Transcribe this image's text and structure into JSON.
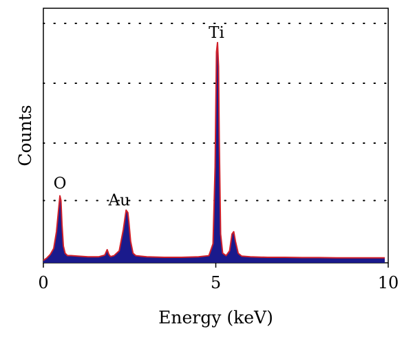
{
  "chart_data": {
    "type": "area",
    "title": "",
    "xlabel": "Energy (keV)",
    "ylabel": "Counts",
    "xlim": [
      0,
      10
    ],
    "ylim": [
      0,
      100
    ],
    "x_ticks": [
      0,
      5,
      10
    ],
    "y_ticks_shown": false,
    "grid": {
      "horizontal": true,
      "style": "dotted",
      "levels": [
        26,
        50,
        75,
        100
      ]
    },
    "series": [
      {
        "fill_color": "#1a1a8c",
        "outline_color": "#d0202a",
        "x": [
          0.0,
          0.1,
          0.2,
          0.3,
          0.38,
          0.44,
          0.48,
          0.51,
          0.54,
          0.58,
          0.63,
          0.7,
          0.8,
          1.0,
          1.3,
          1.6,
          1.78,
          1.85,
          1.9,
          1.95,
          2.05,
          2.2,
          2.32,
          2.4,
          2.45,
          2.48,
          2.53,
          2.6,
          2.68,
          2.8,
          3.0,
          3.5,
          4.0,
          4.5,
          4.8,
          4.92,
          4.98,
          5.02,
          5.05,
          5.08,
          5.1,
          5.14,
          5.2,
          5.3,
          5.4,
          5.47,
          5.52,
          5.57,
          5.65,
          5.75,
          6.0,
          6.5,
          7.0,
          7.5,
          8.0,
          8.5,
          9.0,
          9.5,
          9.9
        ],
        "values": [
          1.0,
          2.0,
          3.5,
          6.0,
          13.0,
          22.0,
          28.0,
          26.0,
          16.0,
          7.0,
          4.0,
          3.0,
          3.0,
          2.8,
          2.5,
          2.5,
          3.2,
          5.5,
          3.5,
          2.6,
          3.0,
          5.0,
          14.0,
          22.0,
          21.0,
          17.0,
          9.0,
          4.0,
          3.0,
          2.8,
          2.5,
          2.3,
          2.3,
          2.5,
          3.0,
          8.0,
          40.0,
          88.0,
          92.0,
          82.0,
          52.0,
          12.0,
          4.0,
          3.0,
          5.0,
          12.0,
          13.0,
          9.0,
          4.0,
          2.8,
          2.5,
          2.3,
          2.3,
          2.2,
          2.2,
          2.1,
          2.1,
          2.1,
          2.1
        ]
      }
    ],
    "annotations": [
      {
        "text": "O",
        "x": 0.48,
        "y": 31
      },
      {
        "text": "Au",
        "x": 2.2,
        "y": 24
      },
      {
        "text": "Ti",
        "x": 5.02,
        "y": 94
      }
    ]
  }
}
